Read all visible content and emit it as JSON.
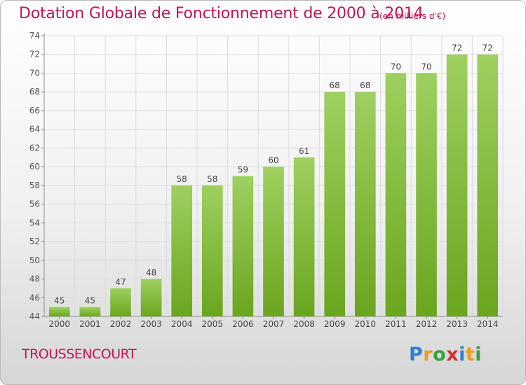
{
  "title": "Dotation Globale de Fonctionnement de 2000 à 2014",
  "unit_note": "(en milliers d'€)",
  "commune": "TROUSSENCOURT",
  "logo": {
    "letters": [
      "P",
      "r",
      "o",
      "x",
      "i",
      "t",
      "i"
    ],
    "colors": [
      "#2e7fd6",
      "#f29a1d",
      "#3aa23a",
      "#d8312f",
      "#2e7fd6",
      "#f29a1d",
      "#3aa23a"
    ]
  },
  "colors": {
    "bar_top": "#9ed060",
    "bar_bottom": "#6aa51e",
    "grid": "#dcdcdc",
    "axis": "#8c8c8c",
    "title": "#c0145a"
  },
  "chart_data": {
    "type": "bar",
    "categories": [
      "2000",
      "2001",
      "2002",
      "2003",
      "2004",
      "2005",
      "2006",
      "2007",
      "2008",
      "2009",
      "2010",
      "2011",
      "2012",
      "2013",
      "2014"
    ],
    "values": [
      45,
      45,
      47,
      48,
      58,
      58,
      59,
      60,
      61,
      68,
      68,
      70,
      70,
      72,
      72
    ],
    "ylim": [
      44,
      74
    ],
    "yticks": [
      44,
      46,
      48,
      50,
      52,
      54,
      56,
      58,
      60,
      62,
      64,
      66,
      68,
      70,
      72,
      74
    ],
    "grid": true,
    "data_labels": true
  }
}
